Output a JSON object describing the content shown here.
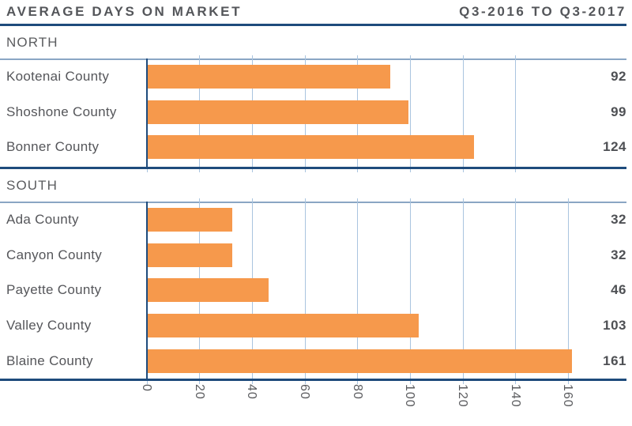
{
  "header": {
    "title": "AVERAGE DAYS ON MARKET",
    "period": "Q3-2016 TO Q3-2017"
  },
  "chart_data": {
    "type": "bar",
    "orientation": "horizontal",
    "title": "AVERAGE DAYS ON MARKET",
    "subtitle": "Q3-2016 TO Q3-2017",
    "xlim": [
      0,
      160
    ],
    "x_ticks": [
      "0",
      "20",
      "40",
      "60",
      "80",
      "100",
      "120",
      "140",
      "160"
    ],
    "grid": true,
    "sections": [
      {
        "name": "NORTH",
        "grid_max": 140,
        "categories": [
          "Kootenai County",
          "Shoshone County",
          "Bonner County"
        ],
        "values": [
          92,
          99,
          124
        ]
      },
      {
        "name": "SOUTH",
        "grid_max": 160,
        "categories": [
          "Ada County",
          "Canyon County",
          "Payette County",
          "Valley County",
          "Blaine County"
        ],
        "values": [
          32,
          32,
          46,
          103,
          161
        ]
      }
    ]
  },
  "colors": {
    "bar_orange": "#F6994C",
    "rule_navy": "#1E4B7C",
    "gridline_blue": "#A9C4DF",
    "plot_border_blue": "#8AA6C4",
    "text_gray": "#55565A"
  }
}
